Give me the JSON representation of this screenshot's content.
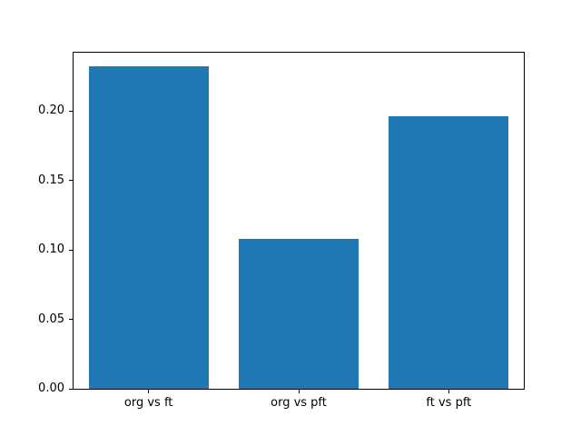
{
  "chart_data": {
    "type": "bar",
    "title": "",
    "xlabel": "",
    "ylabel": "",
    "categories": [
      "org vs ft",
      "org vs pft",
      "ft vs pft"
    ],
    "values": [
      0.232,
      0.108,
      0.196
    ],
    "ylim": [
      0,
      0.242
    ],
    "yticks": [
      0.0,
      0.05,
      0.1,
      0.15,
      0.2
    ],
    "ytick_labels": [
      "0.00",
      "0.05",
      "0.10",
      "0.15",
      "0.20"
    ],
    "bar_color": "#1f77b4",
    "axis_color": "#000000",
    "background_color": "#ffffff",
    "grid": false,
    "legend": null,
    "bar_width_fraction": 0.8
  }
}
